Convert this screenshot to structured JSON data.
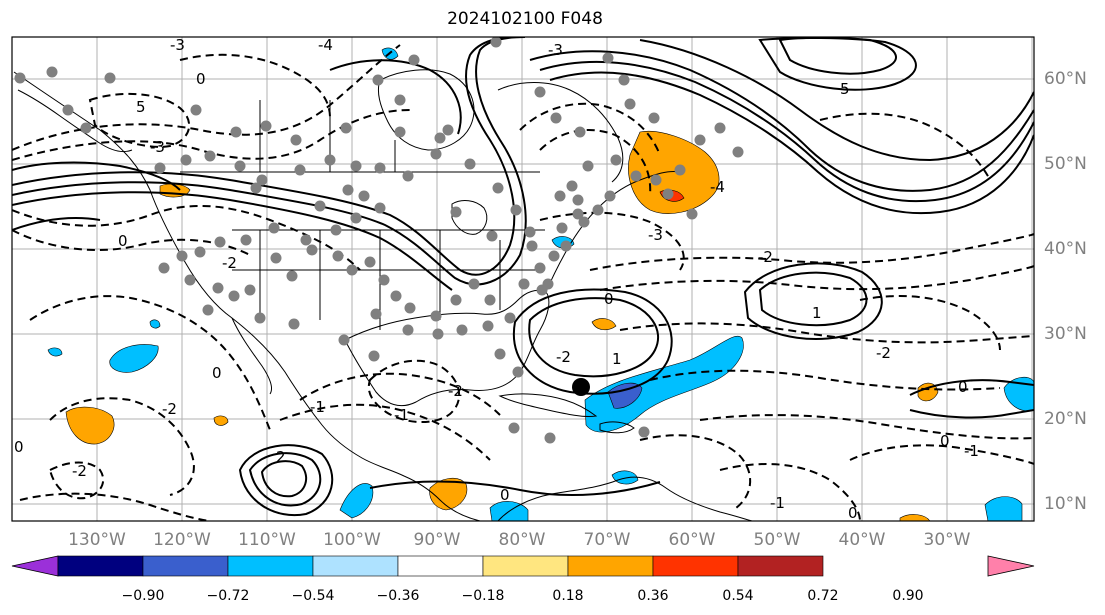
{
  "title": "2024102100 F048",
  "colors": {
    "contour": "#000000",
    "grid": "#b0b0b0",
    "station": "#808080",
    "marker": "#000000"
  },
  "lat_labels": [
    "60°N",
    "50°N",
    "40°N",
    "30°N",
    "20°N",
    "10°N"
  ],
  "lon_labels": [
    "130°W",
    "120°W",
    "110°W",
    "100°W",
    "90°W",
    "80°W",
    "70°W",
    "60°W",
    "50°W",
    "40°W",
    "30°W"
  ],
  "colorbar": {
    "colors": [
      "#9b30d9",
      "#00007f",
      "#3a5fcd",
      "#00bfff",
      "#aee2ff",
      "#ffffff",
      "#ffe680",
      "#ffa500",
      "#ff3300",
      "#b22222",
      "#ff80aa"
    ],
    "labels": [
      "−0.90",
      "−0.72",
      "−0.54",
      "−0.36",
      "−0.18",
      "0.18",
      "0.36",
      "0.54",
      "0.72",
      "0.90"
    ]
  },
  "contour_labels": [
    "-4",
    "-3",
    "-2",
    "-1",
    "0",
    "1",
    "2",
    "5"
  ]
}
